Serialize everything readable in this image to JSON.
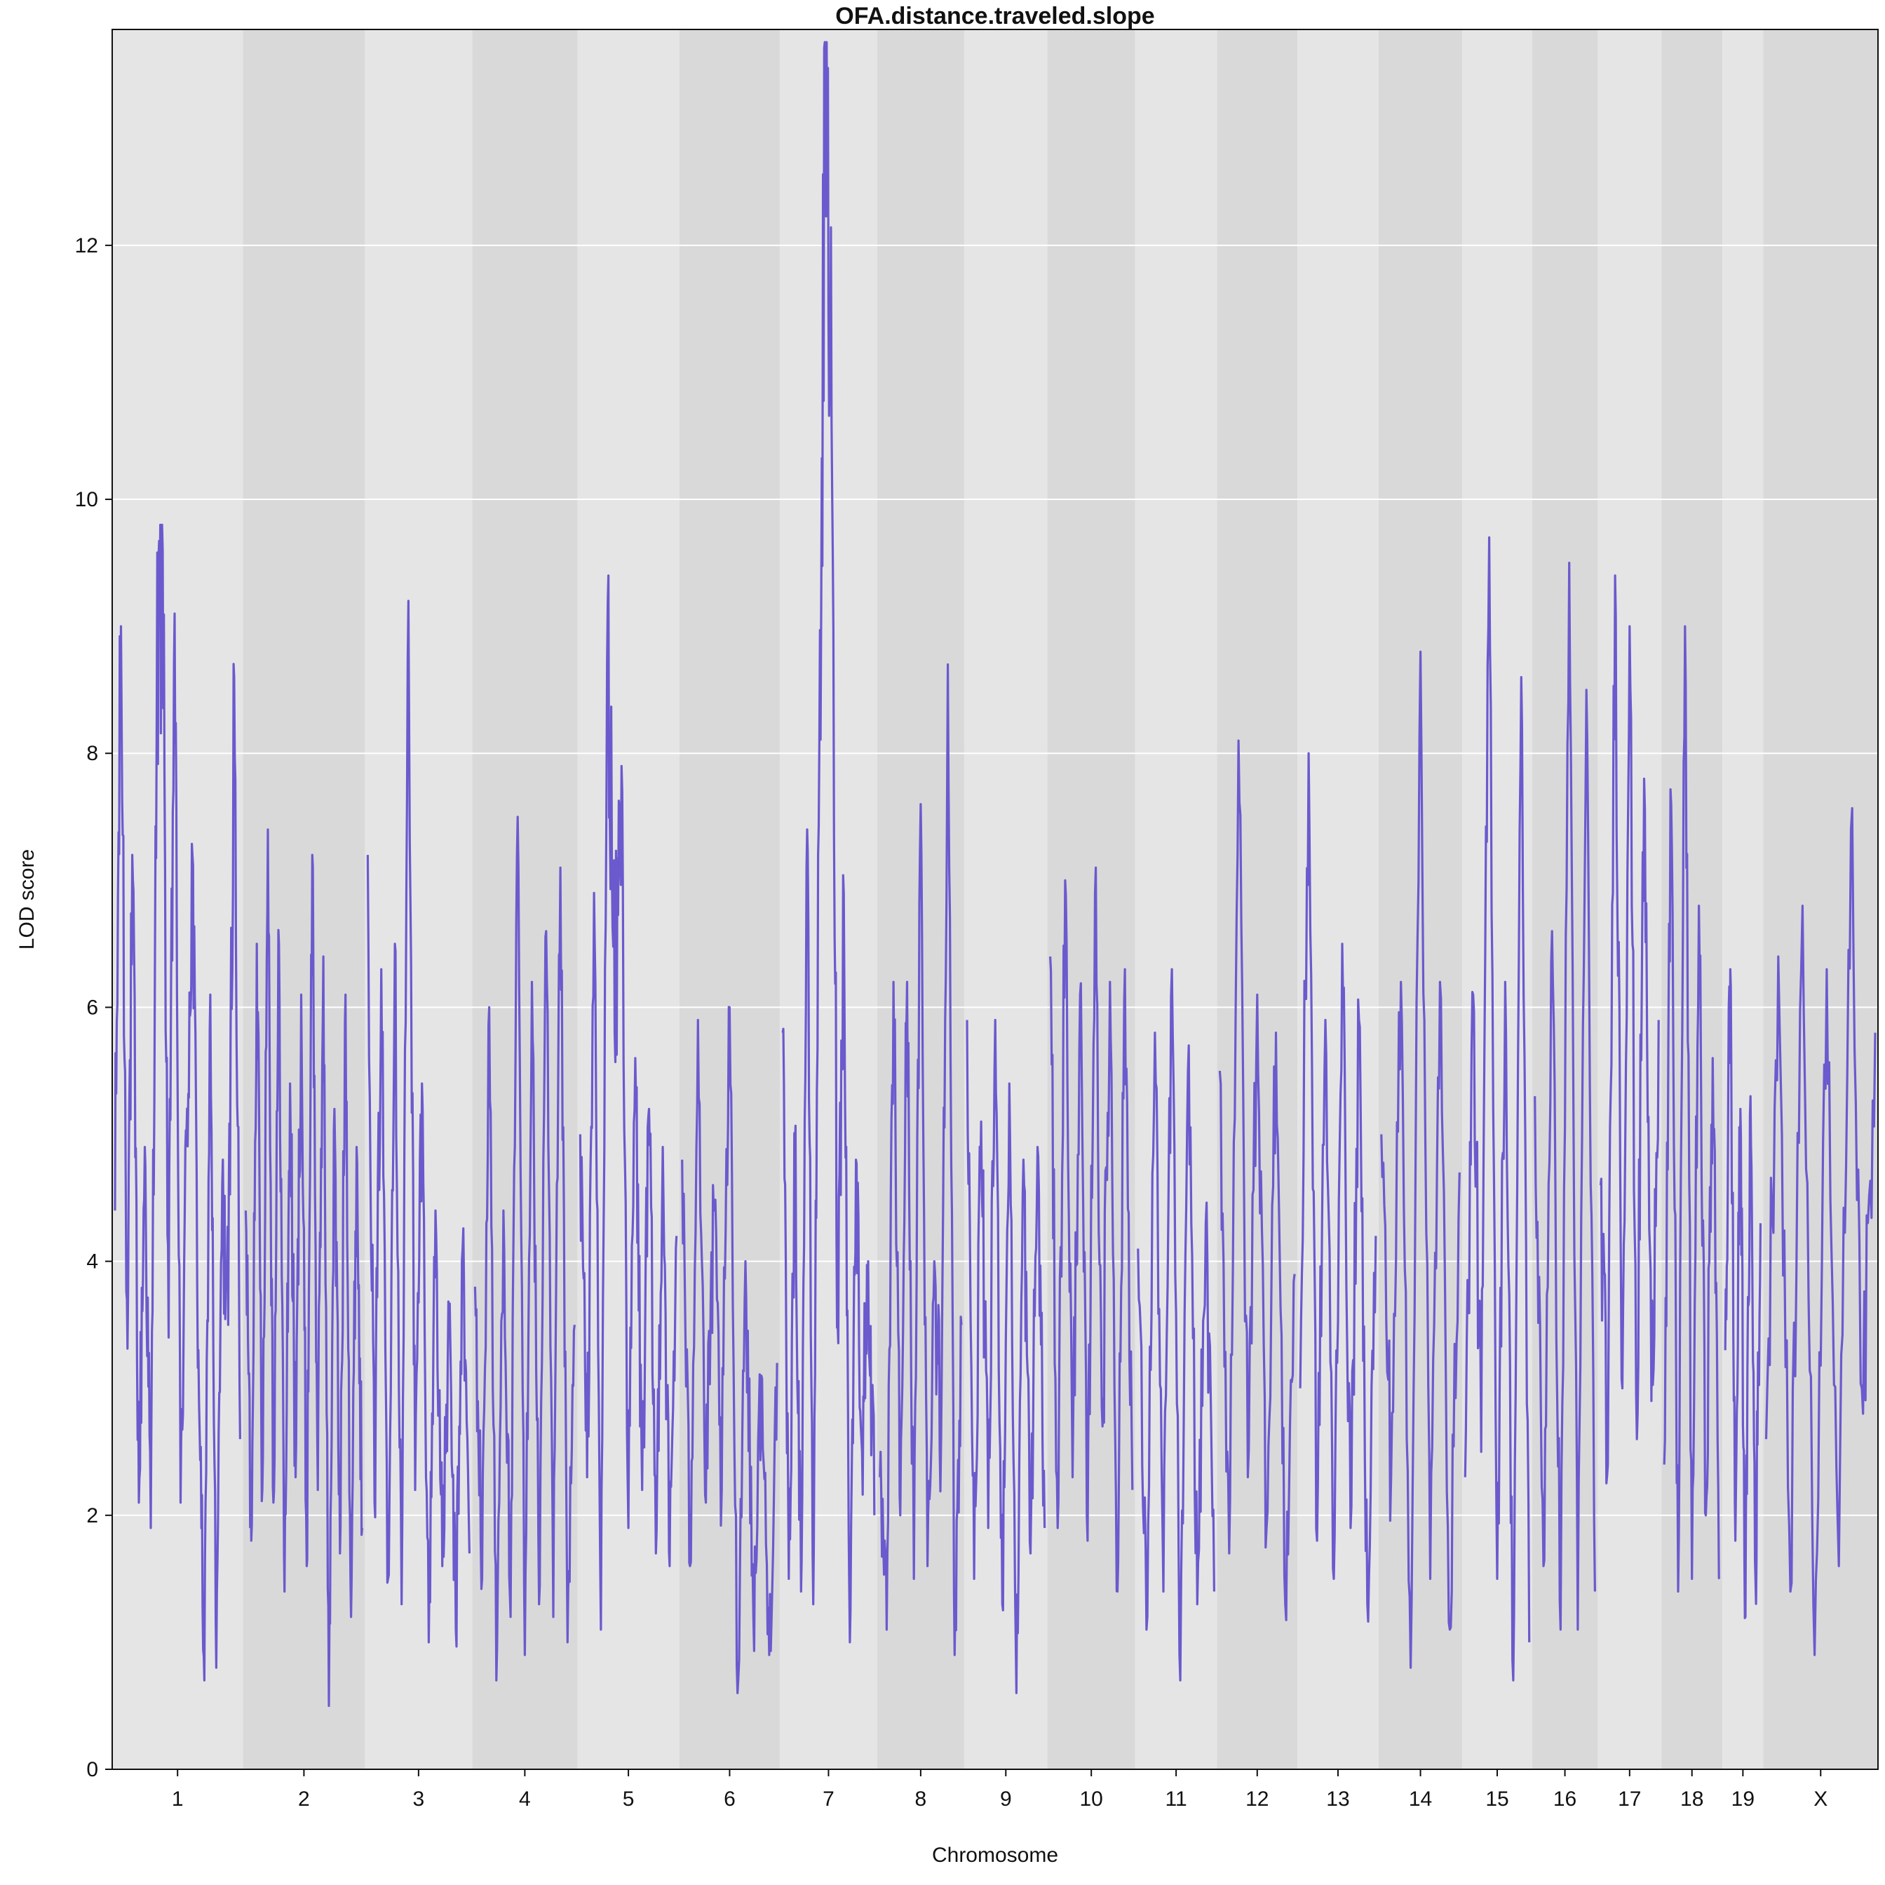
{
  "chart_data": {
    "type": "line",
    "title": "OFA.distance.traveled.slope",
    "xlabel": "Chromosome",
    "ylabel": "LOD score",
    "ylim": [
      0,
      13.7
    ],
    "yticks": [
      0,
      2,
      4,
      6,
      8,
      10,
      12
    ],
    "grid": true,
    "line_color": "#6a5acd",
    "band_colors": [
      "#e5e5e5",
      "#d9d9d9"
    ],
    "categories": [
      "1",
      "2",
      "3",
      "4",
      "5",
      "6",
      "7",
      "8",
      "9",
      "10",
      "11",
      "12",
      "13",
      "14",
      "15",
      "16",
      "17",
      "18",
      "19",
      "X"
    ],
    "chromosome_widths": [
      195,
      182,
      160,
      157,
      152,
      150,
      145,
      130,
      124,
      131,
      122,
      120,
      121,
      125,
      104,
      98,
      95,
      91,
      61,
      171
    ],
    "series": [
      {
        "values": [
          [
            4.4,
            9.0,
            3.7,
            7.0,
            2.1,
            4.9,
            1.9,
            8.3,
            9.6,
            3.4,
            9.1,
            2.1,
            5.0,
            7.2,
            3.3,
            0.7,
            6.1,
            0.8,
            4.6,
            3.5,
            8.6,
            2.6
          ],
          [
            4.4,
            1.8,
            6.5,
            2.2,
            7.4,
            2.1,
            6.5,
            1.4,
            5.4,
            2.3,
            6.1,
            1.6,
            7.2,
            2.2,
            6.4,
            0.5,
            5.2,
            1.7,
            6.1,
            1.2,
            4.9,
            1.9
          ],
          [
            7.2,
            2.1,
            6.3,
            1.5,
            6.5,
            1.3,
            9.2,
            2.2,
            5.4,
            1.0,
            4.4,
            1.6,
            3.5,
            1.1,
            4.1,
            1.7
          ],
          [
            3.8,
            1.5,
            6.0,
            0.7,
            4.4,
            1.2,
            7.5,
            0.9,
            6.2,
            1.3,
            6.6,
            1.2,
            7.1,
            1.0,
            3.5
          ],
          [
            5.0,
            2.3,
            6.9,
            1.1,
            9.2,
            5.8,
            7.9,
            1.9,
            5.6,
            2.2,
            5.2,
            1.7,
            4.9,
            1.6,
            4.2
          ],
          [
            4.8,
            1.6,
            5.9,
            2.1,
            4.4,
            2.2,
            6.0,
            0.6,
            4.0,
            1.2,
            3.1,
            0.9,
            3.2
          ],
          [
            5.8,
            1.5,
            4.9,
            1.4,
            7.4,
            1.3,
            8.1,
            13.4,
            10.6,
            3.5,
            6.9,
            1.0,
            4.8,
            2.5,
            4.0,
            2.0
          ],
          [
            2.3,
            1.1,
            6.2,
            2.0,
            6.2,
            1.5,
            7.6,
            1.6,
            4.0,
            2.6,
            8.7,
            0.9,
            3.5
          ],
          [
            5.9,
            1.5,
            5.1,
            1.9,
            5.9,
            1.3,
            5.4,
            0.6,
            4.8,
            1.7,
            4.9,
            1.9
          ],
          [
            6.4,
            1.9,
            7.0,
            2.3,
            6.1,
            1.8,
            6.9,
            2.7,
            6.2,
            1.4,
            6.3,
            2.2
          ],
          [
            4.1,
            1.1,
            5.8,
            1.4,
            6.3,
            0.7,
            5.7,
            1.3,
            4.3,
            1.4
          ],
          [
            5.5,
            1.7,
            8.1,
            2.3,
            6.1,
            1.9,
            5.8,
            1.3,
            3.9
          ],
          [
            3.0,
            8.0,
            1.8,
            5.9,
            1.5,
            6.5,
            1.9,
            5.9,
            1.3,
            4.2
          ],
          [
            5.0,
            2.3,
            6.2,
            0.8,
            8.8,
            1.5,
            6.2,
            1.1,
            4.7
          ],
          [
            2.3,
            6.1,
            2.5,
            9.7,
            1.5,
            6.2,
            0.7,
            8.6,
            1.0
          ],
          [
            5.3,
            1.6,
            6.6,
            1.1,
            9.5,
            1.1,
            8.5,
            1.4
          ],
          [
            4.6,
            2.4,
            9.4,
            3.0,
            9.0,
            2.6,
            7.8,
            2.9,
            5.9
          ],
          [
            2.4,
            7.6,
            1.4,
            9.0,
            1.5,
            6.8,
            2.0,
            5.6,
            1.5
          ],
          [
            3.3,
            6.3,
            1.8,
            5.2,
            1.2,
            5.3,
            1.5,
            4.3
          ],
          [
            2.6,
            6.4,
            1.4,
            6.8,
            0.9,
            6.3,
            1.6,
            7.4,
            2.8,
            5.8
          ]
        ]
      }
    ]
  }
}
